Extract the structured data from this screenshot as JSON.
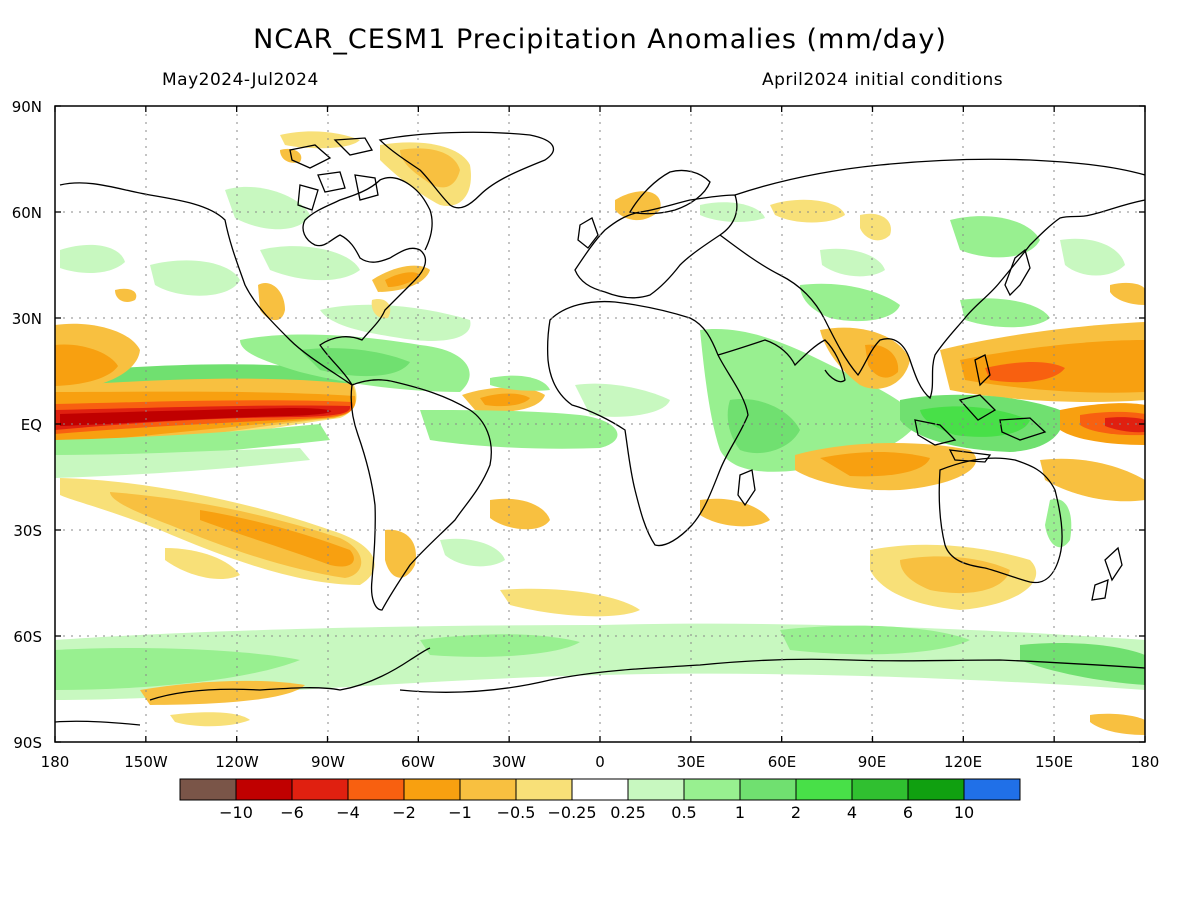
{
  "header": {
    "title": "NCAR_CESM1 Precipitation Anomalies (mm/day)",
    "period": "May2024-Jul2024",
    "init": "April2024 initial conditions"
  },
  "axes": {
    "lat_labels": [
      "90N",
      "60N",
      "30N",
      "EQ",
      "30S",
      "60S",
      "90S"
    ],
    "lon_labels": [
      "180",
      "150W",
      "120W",
      "90W",
      "60W",
      "30W",
      "0",
      "30E",
      "60E",
      "90E",
      "120E",
      "150E",
      "180"
    ]
  },
  "colorbar": {
    "colors": [
      "#7a5548",
      "#c00000",
      "#e02010",
      "#f86010",
      "#f8a010",
      "#f8c040",
      "#f8e078",
      "#ffffff",
      "#c8f8c0",
      "#98f090",
      "#70e070",
      "#48e048",
      "#30c030",
      "#10a010",
      "#2070e8"
    ],
    "labels": [
      "-10",
      "-6",
      "-4",
      "-2",
      "-1",
      "-0.5",
      "-0.25",
      "0.25",
      "0.5",
      "1",
      "2",
      "4",
      "6",
      "10"
    ]
  },
  "colors": {
    "dry_weak": "#f8e078",
    "dry_mod": "#f8c040",
    "dry_strong": "#f8a010",
    "dry_vstrong": "#f86010",
    "dry_extreme": "#e02010",
    "dry_max": "#c00000",
    "wet_weak": "#c8f8c0",
    "wet_mod": "#98f090",
    "wet_strong": "#70e070",
    "wet_vstrong": "#48e048"
  }
}
